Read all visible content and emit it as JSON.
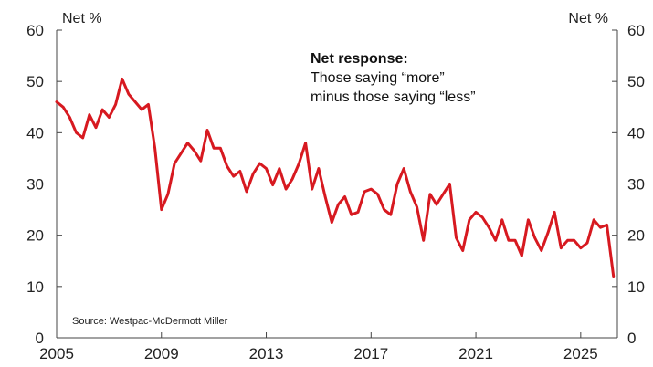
{
  "chart_data": {
    "type": "line",
    "left_axis_unit": "Net %",
    "right_axis_unit": "Net %",
    "annotation": {
      "title": "Net response:",
      "line1": "Those saying “more”",
      "line2": "minus those saying “less”"
    },
    "source": "Source: Westpac-McDermott Miller",
    "xlim": [
      2005,
      2026.4
    ],
    "ylim": [
      0,
      60
    ],
    "x_ticks": [
      "2005",
      "2009",
      "2013",
      "2017",
      "2021",
      "2025"
    ],
    "y_ticks": [
      "0",
      "10",
      "20",
      "30",
      "40",
      "50",
      "60"
    ],
    "line_color": "#d71920",
    "series": [
      {
        "x": [
          2005.0,
          2005.25,
          2005.5,
          2005.75,
          2006.0,
          2006.25,
          2006.5,
          2006.75,
          2007.0,
          2007.25,
          2007.5,
          2007.75,
          2008.0,
          2008.25,
          2008.5,
          2008.75,
          2009.0,
          2009.25,
          2009.5,
          2009.75,
          2010.0,
          2010.25,
          2010.5,
          2010.75,
          2011.0,
          2011.25,
          2011.5,
          2011.75,
          2012.0,
          2012.25,
          2012.5,
          2012.75,
          2013.0,
          2013.25,
          2013.5,
          2013.75,
          2014.0,
          2014.25,
          2014.5,
          2014.75,
          2015.0,
          2015.25,
          2015.5,
          2015.75,
          2016.0,
          2016.25,
          2016.5,
          2016.75,
          2017.0,
          2017.25,
          2017.5,
          2017.75,
          2018.0,
          2018.25,
          2018.5,
          2018.75,
          2019.0,
          2019.25,
          2019.5,
          2019.75,
          2020.0,
          2020.25,
          2020.5,
          2020.75,
          2021.0,
          2021.25,
          2021.5,
          2021.75,
          2022.0,
          2022.25,
          2022.5,
          2022.75,
          2023.0,
          2023.25,
          2023.5,
          2023.75,
          2024.0,
          2024.25,
          2024.5,
          2024.75,
          2025.0,
          2025.25,
          2025.5,
          2025.75,
          2026.0,
          2026.25
        ],
        "values": [
          46,
          45,
          43,
          40,
          39,
          43.5,
          41,
          44.5,
          43,
          45.5,
          50.5,
          47.5,
          46,
          44.5,
          45.5,
          37,
          25,
          28,
          34,
          36,
          38,
          36.5,
          34.5,
          40.5,
          37,
          37,
          33.5,
          31.5,
          32.5,
          28.5,
          32,
          34,
          33,
          29.8,
          33,
          29,
          31,
          34,
          38,
          29,
          33,
          27.5,
          22.5,
          26,
          27.5,
          24,
          24.5,
          28.5,
          29,
          28,
          25,
          24,
          30,
          33,
          28.5,
          25.5,
          19,
          28,
          26,
          28,
          30,
          19.5,
          17,
          23,
          24.5,
          23.5,
          21.5,
          19,
          23,
          19,
          19,
          16,
          23,
          19.5,
          17,
          20.5,
          24.5,
          17.5,
          19,
          19,
          17.5,
          18.5,
          23,
          21.5,
          22,
          12
        ]
      }
    ]
  }
}
